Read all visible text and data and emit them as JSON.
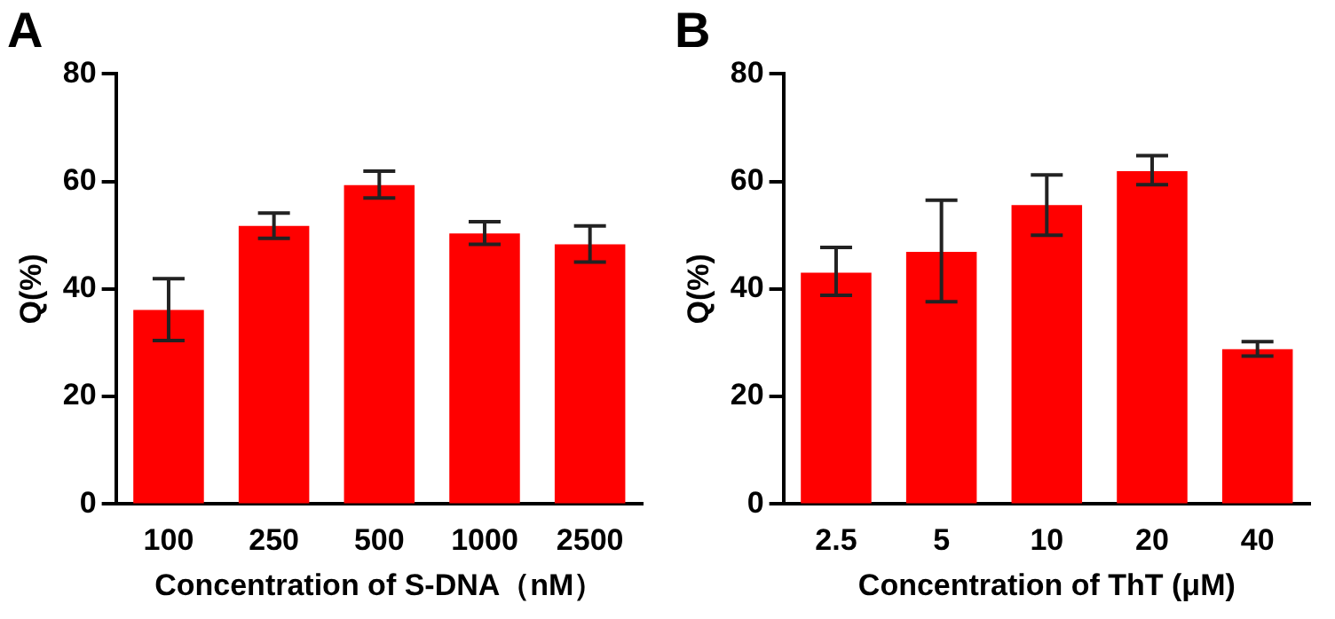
{
  "chart_data": [
    {
      "type": "bar",
      "title": "A",
      "xlabel": "Concentration of S-DNA（nM）",
      "ylabel": "Q(%)",
      "categories": [
        "100",
        "250",
        "500",
        "1000",
        "2500"
      ],
      "values": [
        36.1,
        51.7,
        59.3,
        50.3,
        48.3
      ],
      "errors": [
        [
          30.4,
          41.9
        ],
        [
          49.4,
          54.1
        ],
        [
          56.9,
          61.9
        ],
        [
          48.3,
          52.5
        ],
        [
          45.0,
          51.7
        ]
      ],
      "color": "#ff0000",
      "ylim": [
        0,
        80
      ],
      "yticks": [
        0,
        20,
        40,
        60,
        80
      ],
      "grid": false,
      "legend": false
    },
    {
      "type": "bar",
      "title": "B",
      "xlabel": "Concentration of ThT (μM)",
      "ylabel": "Q(%)",
      "categories": [
        "2.5",
        "5",
        "10",
        "20",
        "40"
      ],
      "values": [
        43.0,
        46.9,
        55.6,
        61.9,
        28.8
      ],
      "errors": [
        [
          38.8,
          47.7
        ],
        [
          37.6,
          56.5
        ],
        [
          50.0,
          61.2
        ],
        [
          59.4,
          64.8
        ],
        [
          27.5,
          30.2
        ]
      ],
      "color": "#ff0000",
      "ylim": [
        0,
        80
      ],
      "yticks": [
        0,
        20,
        40,
        60,
        80
      ],
      "grid": false,
      "legend": false
    }
  ]
}
